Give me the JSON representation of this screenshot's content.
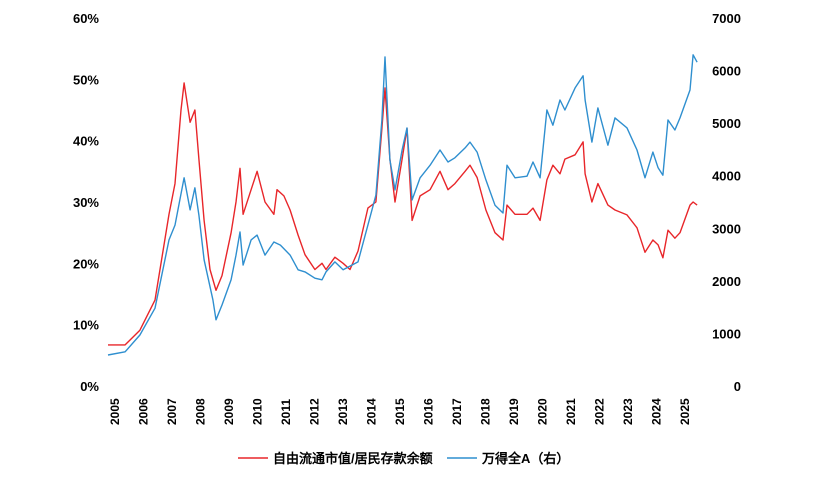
{
  "chart_data": {
    "type": "line",
    "title": "",
    "xlabel": "",
    "ylabel_left": "",
    "ylabel_right": "",
    "x_ticks": [
      "2005",
      "2006",
      "2007",
      "2008",
      "2009",
      "2010",
      "2011",
      "2012",
      "2013",
      "2014",
      "2015",
      "2016",
      "2017",
      "2018",
      "2019",
      "2020",
      "2021",
      "2022",
      "2023",
      "2024",
      "2025"
    ],
    "y_left_ticks": [
      "0%",
      "10%",
      "20%",
      "30%",
      "40%",
      "50%",
      "60%"
    ],
    "y_right_ticks": [
      "0",
      "1000",
      "2000",
      "3000",
      "4000",
      "5000",
      "6000",
      "7000"
    ],
    "ylim_left": [
      0,
      60
    ],
    "ylim_right": [
      0,
      7000
    ],
    "grid": false,
    "legend_position": "bottom",
    "series": [
      {
        "name": "自由流通市值/居民存款余额",
        "axis": "left",
        "color": "#e8262a",
        "points": [
          [
            2004.79,
            6.7
          ],
          [
            2005.39,
            6.7
          ],
          [
            2005.91,
            9.1
          ],
          [
            2006.44,
            14
          ],
          [
            2006.93,
            28
          ],
          [
            2007.14,
            33
          ],
          [
            2007.35,
            45
          ],
          [
            2007.46,
            49.4
          ],
          [
            2007.67,
            43
          ],
          [
            2007.84,
            45
          ],
          [
            2007.98,
            37
          ],
          [
            2008.16,
            27
          ],
          [
            2008.37,
            19
          ],
          [
            2008.58,
            15.6
          ],
          [
            2008.79,
            18
          ],
          [
            2009.11,
            25
          ],
          [
            2009.28,
            30
          ],
          [
            2009.42,
            35.5
          ],
          [
            2009.53,
            28
          ],
          [
            2009.81,
            32
          ],
          [
            2010.02,
            35
          ],
          [
            2010.3,
            30
          ],
          [
            2010.61,
            28
          ],
          [
            2010.72,
            32
          ],
          [
            2010.96,
            31
          ],
          [
            2011.18,
            28.7
          ],
          [
            2011.46,
            24.6
          ],
          [
            2011.7,
            21.4
          ],
          [
            2012.05,
            19
          ],
          [
            2012.3,
            20
          ],
          [
            2012.44,
            19
          ],
          [
            2012.75,
            21
          ],
          [
            2013.04,
            20
          ],
          [
            2013.28,
            19
          ],
          [
            2013.56,
            22
          ],
          [
            2013.91,
            29
          ],
          [
            2014.19,
            30
          ],
          [
            2014.4,
            42
          ],
          [
            2014.51,
            48.6
          ],
          [
            2014.68,
            37
          ],
          [
            2014.86,
            30
          ],
          [
            2015.11,
            37
          ],
          [
            2015.28,
            42
          ],
          [
            2015.46,
            27
          ],
          [
            2015.74,
            31
          ],
          [
            2016.09,
            32
          ],
          [
            2016.44,
            35
          ],
          [
            2016.72,
            32
          ],
          [
            2016.96,
            33
          ],
          [
            2017.32,
            35
          ],
          [
            2017.49,
            36
          ],
          [
            2017.74,
            34
          ],
          [
            2018.05,
            28.7
          ],
          [
            2018.37,
            25
          ],
          [
            2018.65,
            23.8
          ],
          [
            2018.79,
            29.5
          ],
          [
            2019.07,
            28
          ],
          [
            2019.49,
            28
          ],
          [
            2019.7,
            29
          ],
          [
            2019.95,
            27
          ],
          [
            2020.19,
            33.6
          ],
          [
            2020.4,
            36
          ],
          [
            2020.65,
            34.6
          ],
          [
            2020.82,
            37
          ],
          [
            2021.18,
            37.7
          ],
          [
            2021.46,
            39.8
          ],
          [
            2021.53,
            34.6
          ],
          [
            2021.77,
            30
          ],
          [
            2021.98,
            33
          ],
          [
            2022.33,
            29.5
          ],
          [
            2022.58,
            28.7
          ],
          [
            2023.0,
            27.9
          ],
          [
            2023.35,
            25.8
          ],
          [
            2023.63,
            21.8
          ],
          [
            2023.91,
            23.8
          ],
          [
            2024.09,
            23
          ],
          [
            2024.26,
            20.9
          ],
          [
            2024.44,
            25.4
          ],
          [
            2024.68,
            24.1
          ],
          [
            2024.86,
            25
          ],
          [
            2025.21,
            29.5
          ],
          [
            2025.32,
            30
          ],
          [
            2025.46,
            29.5
          ]
        ]
      },
      {
        "name": "万得全A（右）",
        "axis": "right",
        "color": "#2f8fcf",
        "points": [
          [
            2004.79,
            590
          ],
          [
            2005.39,
            650
          ],
          [
            2005.91,
            970
          ],
          [
            2006.44,
            1480
          ],
          [
            2006.93,
            2780
          ],
          [
            2007.14,
            3060
          ],
          [
            2007.46,
            3960
          ],
          [
            2007.67,
            3350
          ],
          [
            2007.84,
            3770
          ],
          [
            2007.98,
            3250
          ],
          [
            2008.16,
            2400
          ],
          [
            2008.47,
            1640
          ],
          [
            2008.58,
            1260
          ],
          [
            2008.79,
            1540
          ],
          [
            2009.11,
            2020
          ],
          [
            2009.28,
            2490
          ],
          [
            2009.42,
            2930
          ],
          [
            2009.53,
            2300
          ],
          [
            2009.81,
            2780
          ],
          [
            2010.02,
            2870
          ],
          [
            2010.3,
            2490
          ],
          [
            2010.61,
            2740
          ],
          [
            2010.84,
            2680
          ],
          [
            2011.18,
            2490
          ],
          [
            2011.46,
            2210
          ],
          [
            2011.7,
            2170
          ],
          [
            2012.05,
            2050
          ],
          [
            2012.3,
            2020
          ],
          [
            2012.44,
            2170
          ],
          [
            2012.75,
            2360
          ],
          [
            2013.04,
            2210
          ],
          [
            2013.28,
            2280
          ],
          [
            2013.56,
            2360
          ],
          [
            2013.91,
            3060
          ],
          [
            2014.19,
            3630
          ],
          [
            2014.4,
            5060
          ],
          [
            2014.51,
            6260
          ],
          [
            2014.68,
            4300
          ],
          [
            2014.86,
            3730
          ],
          [
            2015.11,
            4490
          ],
          [
            2015.28,
            4910
          ],
          [
            2015.46,
            3540
          ],
          [
            2015.74,
            3960
          ],
          [
            2016.09,
            4200
          ],
          [
            2016.44,
            4490
          ],
          [
            2016.72,
            4260
          ],
          [
            2016.96,
            4340
          ],
          [
            2017.32,
            4530
          ],
          [
            2017.49,
            4640
          ],
          [
            2017.74,
            4450
          ],
          [
            2018.05,
            3920
          ],
          [
            2018.37,
            3440
          ],
          [
            2018.65,
            3290
          ],
          [
            2018.79,
            4200
          ],
          [
            2019.07,
            3960
          ],
          [
            2019.49,
            3990
          ],
          [
            2019.7,
            4260
          ],
          [
            2019.95,
            3960
          ],
          [
            2020.19,
            5250
          ],
          [
            2020.4,
            4960
          ],
          [
            2020.65,
            5440
          ],
          [
            2020.82,
            5250
          ],
          [
            2021.18,
            5670
          ],
          [
            2021.46,
            5900
          ],
          [
            2021.53,
            5440
          ],
          [
            2021.77,
            4640
          ],
          [
            2021.98,
            5290
          ],
          [
            2022.33,
            4580
          ],
          [
            2022.58,
            5100
          ],
          [
            2023.0,
            4910
          ],
          [
            2023.35,
            4490
          ],
          [
            2023.63,
            3960
          ],
          [
            2023.91,
            4450
          ],
          [
            2024.09,
            4150
          ],
          [
            2024.26,
            4010
          ],
          [
            2024.44,
            5060
          ],
          [
            2024.68,
            4870
          ],
          [
            2024.86,
            5100
          ],
          [
            2025.21,
            5630
          ],
          [
            2025.32,
            6300
          ],
          [
            2025.46,
            6160
          ]
        ]
      }
    ]
  }
}
